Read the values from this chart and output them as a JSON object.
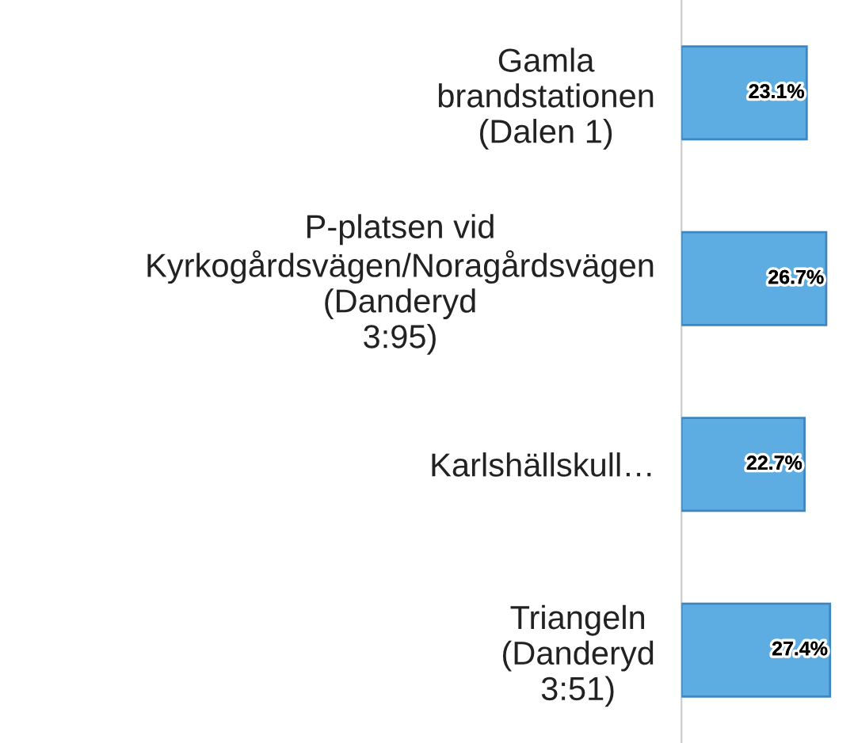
{
  "chart_data": {
    "type": "bar",
    "orientation": "horizontal",
    "categories": [
      "Gamla\nbrandstationen\n(Dalen 1)",
      "P-platsen vid\nKyrkogårdsvägen/Noragårdsvägen\n(Danderyd\n3:95)",
      "Karlshällskull…",
      "Triangeln\n(Danderyd\n3:51)"
    ],
    "values": [
      23.1,
      26.7,
      22.7,
      27.4
    ],
    "value_labels": [
      "23.1%",
      "26.7%",
      "22.7%",
      "27.4%"
    ],
    "color": "#5dade2",
    "tick_labels": "y"
  }
}
